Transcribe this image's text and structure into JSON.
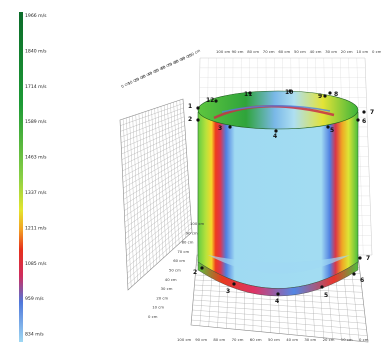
{
  "legend": {
    "labels": [
      "1966 m/s",
      "1840 m/s",
      "1714 m/s",
      "1589 m/s",
      "1463 m/s",
      "1337 m/s",
      "1211 m/s",
      "1085 m/s",
      "959 m/s",
      "834 m/s"
    ]
  },
  "axes": {
    "top_ticks": [
      "100 cm",
      "90 cm",
      "80 cm",
      "70 cm",
      "60 cm",
      "50 cm",
      "40 cm",
      "30 cm",
      "20 cm",
      "10 cm",
      "0 cm"
    ],
    "bottom_ticks": [
      "100 cm",
      "90 cm",
      "80 cm",
      "70 cm",
      "60 cm",
      "50 cm",
      "40 cm",
      "30 cm",
      "20 cm",
      "10 cm",
      "0 cm"
    ],
    "depth_ticks": [
      "100 cm",
      "90 cm",
      "80 cm",
      "70 cm",
      "60 cm",
      "50 cm",
      "40 cm",
      "30 cm",
      "20 cm",
      "10 cm",
      "0 cm"
    ],
    "back_ticks": [
      "100 cm",
      "90 cm",
      "80 cm",
      "70 cm",
      "60 cm",
      "50 cm",
      "40 cm",
      "30 cm",
      "20 cm",
      "10 cm",
      "0 cm"
    ]
  },
  "top_points": [
    "1",
    "2",
    "3",
    "4",
    "5",
    "6",
    "7",
    "8",
    "9",
    "10",
    "11",
    "12"
  ],
  "bottom_points": [
    "2",
    "3",
    "4",
    "5",
    "6",
    "7"
  ]
}
